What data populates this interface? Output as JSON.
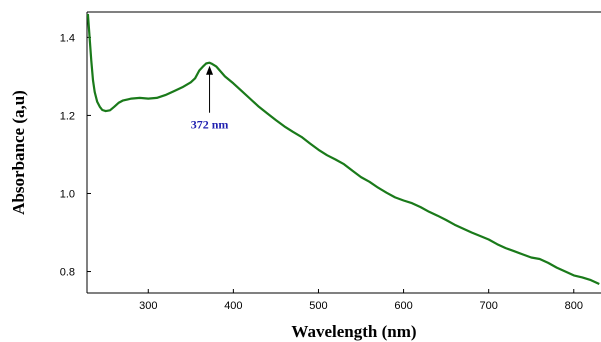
{
  "chart_data": {
    "type": "line",
    "title": "",
    "xlabel": "Wavelength (nm)",
    "ylabel": "Absorbance (a,u)",
    "xlim": [
      228,
      832
    ],
    "ylim": [
      0.745,
      1.465
    ],
    "x_ticks": [
      {
        "value": 300,
        "label": "300"
      },
      {
        "value": 400,
        "label": "400"
      },
      {
        "value": 500,
        "label": "500"
      },
      {
        "value": 600,
        "label": "600"
      },
      {
        "value": 700,
        "label": "700"
      },
      {
        "value": 800,
        "label": "800"
      }
    ],
    "y_ticks": [
      {
        "value": 0.8,
        "label": "0.8"
      },
      {
        "value": 1.0,
        "label": "1.0"
      },
      {
        "value": 1.2,
        "label": "1.2"
      },
      {
        "value": 1.4,
        "label": "1.4"
      }
    ],
    "grid": false,
    "line_color": "#1a7a1a",
    "series": [
      {
        "x": [
          229,
          231,
          233,
          235,
          237,
          240,
          243,
          246,
          250,
          255,
          260,
          265,
          270,
          280,
          290,
          300,
          310,
          320,
          330,
          340,
          350,
          355,
          360,
          365,
          368,
          370,
          372,
          375,
          380,
          390,
          400,
          410,
          420,
          430,
          440,
          450,
          460,
          470,
          480,
          490,
          500,
          510,
          520,
          530,
          540,
          550,
          560,
          570,
          580,
          590,
          600,
          610,
          620,
          630,
          640,
          650,
          660,
          670,
          680,
          690,
          700,
          710,
          720,
          730,
          740,
          750,
          760,
          770,
          780,
          790,
          800,
          810,
          820,
          830
        ],
        "y": [
          1.46,
          1.4,
          1.34,
          1.29,
          1.26,
          1.235,
          1.222,
          1.214,
          1.211,
          1.213,
          1.222,
          1.232,
          1.238,
          1.243,
          1.245,
          1.243,
          1.245,
          1.252,
          1.262,
          1.272,
          1.285,
          1.295,
          1.315,
          1.327,
          1.333,
          1.334,
          1.335,
          1.332,
          1.325,
          1.3,
          1.282,
          1.262,
          1.242,
          1.222,
          1.205,
          1.188,
          1.172,
          1.158,
          1.145,
          1.128,
          1.112,
          1.098,
          1.087,
          1.075,
          1.058,
          1.042,
          1.03,
          1.015,
          1.002,
          0.99,
          0.982,
          0.975,
          0.965,
          0.953,
          0.943,
          0.932,
          0.92,
          0.91,
          0.9,
          0.891,
          0.882,
          0.87,
          0.86,
          0.852,
          0.844,
          0.836,
          0.832,
          0.822,
          0.81,
          0.8,
          0.79,
          0.785,
          0.778,
          0.768
        ]
      }
    ],
    "annotations": [
      {
        "text": "372 nm",
        "x": 372,
        "y": 1.335,
        "arrow": true
      }
    ]
  }
}
